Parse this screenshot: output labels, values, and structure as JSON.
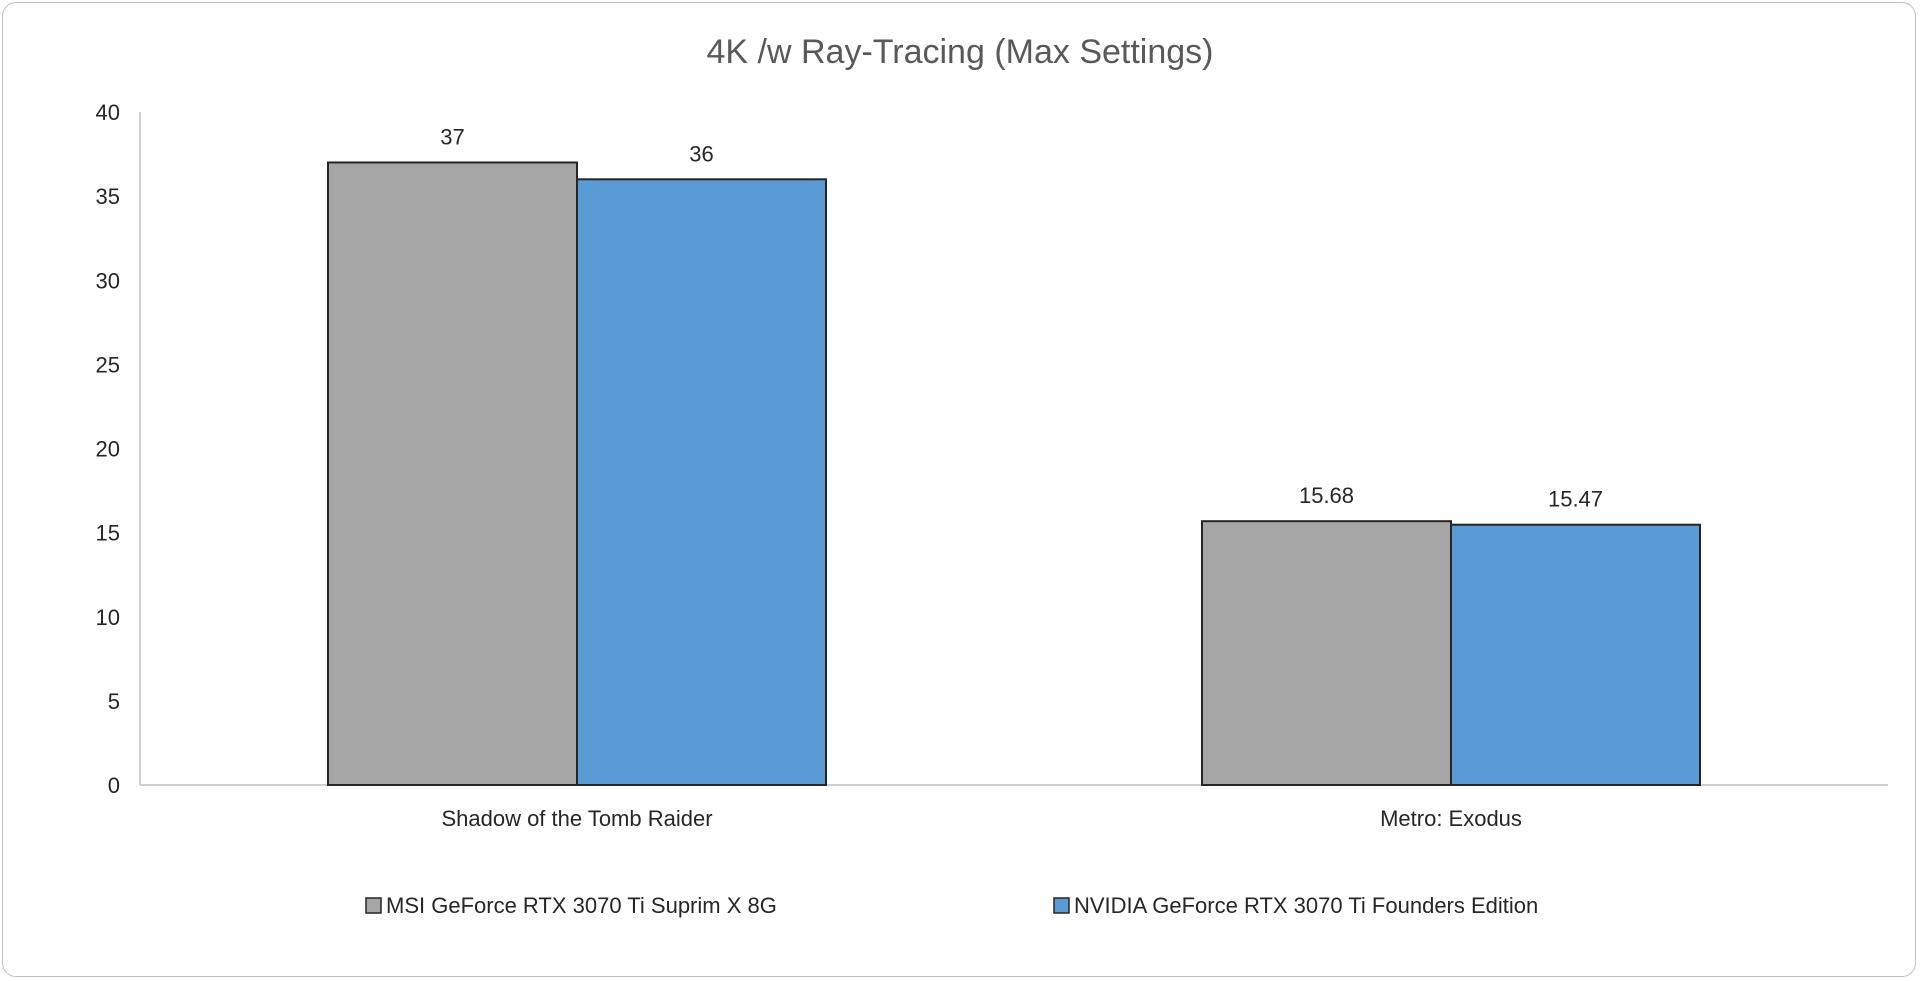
{
  "chart_data": {
    "type": "bar",
    "title": "4K /w Ray-Tracing (Max Settings)",
    "xlabel": "",
    "ylabel": "",
    "categories": [
      "Shadow of the Tomb Raider",
      "Metro: Exodus"
    ],
    "series": [
      {
        "name": "MSI GeForce RTX 3070 Ti Suprim X 8G",
        "values": [
          37,
          15.68
        ],
        "labels": [
          "37",
          "15.68"
        ],
        "color": "#a6a6a6"
      },
      {
        "name": "NVIDIA GeForce RTX 3070 Ti Founders Edition",
        "values": [
          36,
          15.47
        ],
        "labels": [
          "36",
          "15.47"
        ],
        "color": "#5b9bd5"
      }
    ],
    "ylim": [
      0,
      40
    ],
    "yticks": [
      0,
      5,
      10,
      15,
      20,
      25,
      30,
      35,
      40
    ],
    "grid": false,
    "legend_position": "bottom",
    "axis_color": "#bfbfbf",
    "bar_stroke": "#262626"
  }
}
